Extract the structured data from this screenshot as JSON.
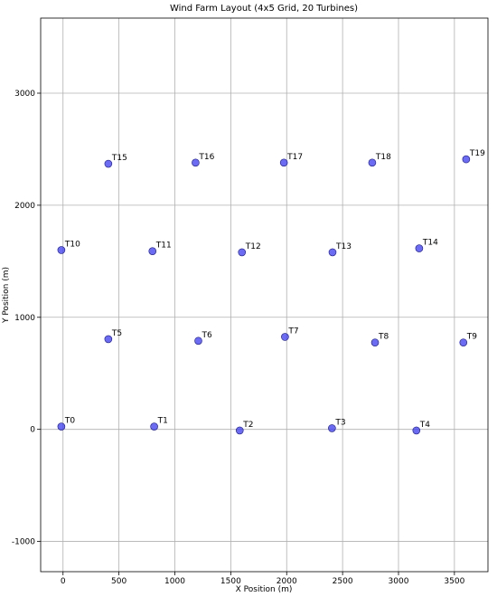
{
  "chart_data": {
    "type": "scatter",
    "title": "Wind Farm Layout (4x5 Grid, 20 Turbines)",
    "xlabel": "X Position (m)",
    "ylabel": "Y Position (m)",
    "labels": [
      "T0",
      "T1",
      "T2",
      "T3",
      "T4",
      "T5",
      "T6",
      "T7",
      "T8",
      "T9",
      "T10",
      "T11",
      "T12",
      "T13",
      "T14",
      "T15",
      "T16",
      "T17",
      "T18",
      "T19"
    ],
    "x": [
      -15,
      815,
      1580,
      2405,
      3160,
      405,
      1210,
      1985,
      2790,
      3580,
      -15,
      800,
      1600,
      2410,
      3185,
      405,
      1185,
      1975,
      2765,
      3605
    ],
    "values": [
      25,
      25,
      -10,
      10,
      -10,
      805,
      790,
      825,
      775,
      775,
      1600,
      1590,
      1580,
      1580,
      1615,
      2370,
      2380,
      2380,
      2380,
      2410
    ],
    "color": "#3a3af0",
    "xlim": [
      -200,
      3800
    ],
    "ylim": [
      -1270,
      3670
    ],
    "xticks": [
      0,
      500,
      1000,
      1500,
      2000,
      2500,
      3000,
      3500
    ],
    "yticks": [
      -1000,
      0,
      1000,
      2000,
      3000
    ],
    "grid": true
  }
}
